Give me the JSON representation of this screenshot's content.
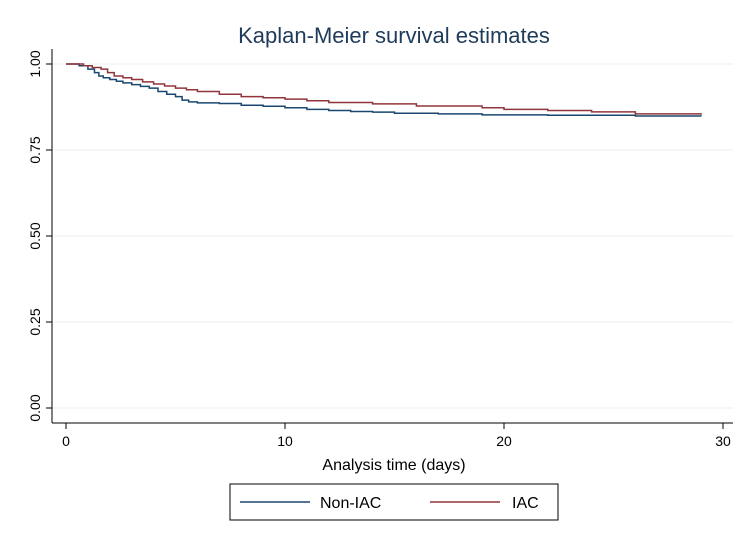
{
  "chart_data": {
    "type": "line",
    "step": true,
    "title": "Kaplan-Meier survival estimates",
    "xlabel": "Analysis time (days)",
    "ylabel": "",
    "xlim": [
      0,
      30
    ],
    "ylim": [
      0,
      1
    ],
    "x_ticks": [
      0,
      10,
      20,
      30
    ],
    "x_tick_labels": [
      "0",
      "10",
      "20",
      "30"
    ],
    "y_ticks": [
      0,
      0.25,
      0.5,
      0.75,
      1.0
    ],
    "y_tick_labels": [
      "0.00",
      "0.25",
      "0.50",
      "0.75",
      "1.00"
    ],
    "grid": "horizontal",
    "legend_position": "bottom",
    "series": [
      {
        "name": "Non-IAC",
        "color": "#1a476f",
        "x": [
          0,
          0.6,
          1.0,
          1.3,
          1.5,
          1.7,
          2.0,
          2.3,
          2.6,
          3.0,
          3.4,
          3.8,
          4.2,
          4.6,
          5.0,
          5.3,
          5.6,
          6.0,
          7.0,
          8.0,
          9.0,
          10.0,
          11.0,
          12.0,
          13.0,
          14.0,
          15.0,
          17.0,
          19.0,
          22.0,
          26.0,
          29.0
        ],
        "y": [
          1.0,
          0.995,
          0.985,
          0.975,
          0.965,
          0.96,
          0.955,
          0.95,
          0.945,
          0.94,
          0.935,
          0.93,
          0.92,
          0.912,
          0.905,
          0.895,
          0.89,
          0.887,
          0.885,
          0.88,
          0.877,
          0.873,
          0.868,
          0.865,
          0.862,
          0.86,
          0.857,
          0.855,
          0.852,
          0.851,
          0.849,
          0.848
        ]
      },
      {
        "name": "IAC",
        "color": "#90353b",
        "x": [
          0,
          0.8,
          1.2,
          1.6,
          1.9,
          2.2,
          2.6,
          3.0,
          3.5,
          4.0,
          4.5,
          5.0,
          5.5,
          6.0,
          7.0,
          8.0,
          9.0,
          10.0,
          11.0,
          12.0,
          14.0,
          16.0,
          19.0,
          20.0,
          22.0,
          24.0,
          26.0,
          29.0
        ],
        "y": [
          1.0,
          0.995,
          0.99,
          0.985,
          0.975,
          0.965,
          0.96,
          0.955,
          0.948,
          0.942,
          0.936,
          0.93,
          0.925,
          0.92,
          0.912,
          0.905,
          0.902,
          0.898,
          0.893,
          0.888,
          0.884,
          0.878,
          0.873,
          0.868,
          0.865,
          0.861,
          0.855,
          0.853
        ]
      }
    ]
  }
}
